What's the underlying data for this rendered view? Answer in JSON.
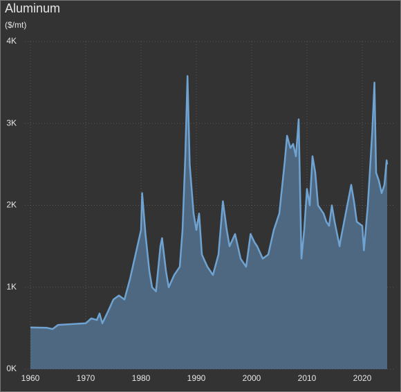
{
  "chart_data": {
    "type": "area",
    "title": "Aluminum",
    "subtitle": "($/mt)",
    "color": "#6fa3d2",
    "fill": "#4f6882",
    "grid": true,
    "x": [
      1960,
      1963,
      1964,
      1965,
      1970,
      1971,
      1972,
      1972.5,
      1973,
      1974,
      1975,
      1976,
      1977,
      1978,
      1979,
      1980,
      1980.2,
      1980.8,
      1981.5,
      1982,
      1982.7,
      1983.5,
      1983.8,
      1984.5,
      1985,
      1986,
      1987,
      1987.5,
      1988,
      1988.4,
      1988.8,
      1989.5,
      1990,
      1990.5,
      1991,
      1992,
      1993,
      1994,
      1994.8,
      1995.5,
      1996,
      1997,
      1998,
      1999,
      1999.8,
      2000.5,
      2001,
      2002,
      2003,
      2004,
      2005,
      2006,
      2006.4,
      2007,
      2007.5,
      2008,
      2008.5,
      2009,
      2009.5,
      2010,
      2010.5,
      2011,
      2011.5,
      2012,
      2013,
      2013.5,
      2014,
      2014.5,
      2015,
      2015.9,
      2016,
      2017,
      2018,
      2018.5,
      2019,
      2020,
      2020.3,
      2021,
      2021.8,
      2022.2,
      2022.5,
      2023,
      2023.5,
      2024,
      2024.4,
      2024.5
    ],
    "values": [
      510,
      505,
      490,
      540,
      560,
      620,
      600,
      680,
      560,
      700,
      850,
      900,
      850,
      1100,
      1400,
      1700,
      2150,
      1650,
      1200,
      1000,
      950,
      1500,
      1600,
      1200,
      1000,
      1150,
      1250,
      1700,
      2600,
      3580,
      2500,
      1900,
      1700,
      1900,
      1400,
      1250,
      1150,
      1400,
      2050,
      1700,
      1500,
      1650,
      1350,
      1250,
      1650,
      1550,
      1500,
      1350,
      1400,
      1700,
      1900,
      2550,
      2850,
      2700,
      2750,
      2600,
      3050,
      1350,
      1700,
      2200,
      2000,
      2600,
      2400,
      2000,
      1900,
      1800,
      1750,
      2000,
      1800,
      1500,
      1550,
      1900,
      2250,
      2050,
      1800,
      1750,
      1450,
      2000,
      2900,
      3500,
      2400,
      2300,
      2150,
      2250,
      2550,
      2500
    ],
    "xlim": [
      1959,
      2026
    ],
    "xticks": [
      1960,
      1970,
      1980,
      1990,
      2000,
      2010,
      2020
    ],
    "ylim": [
      0,
      4000
    ],
    "yticks": [
      {
        "value": 0,
        "label": "0K"
      },
      {
        "value": 1000,
        "label": "1K"
      },
      {
        "value": 2000,
        "label": "2K"
      },
      {
        "value": 3000,
        "label": "3K"
      },
      {
        "value": 4000,
        "label": "4K"
      }
    ]
  }
}
